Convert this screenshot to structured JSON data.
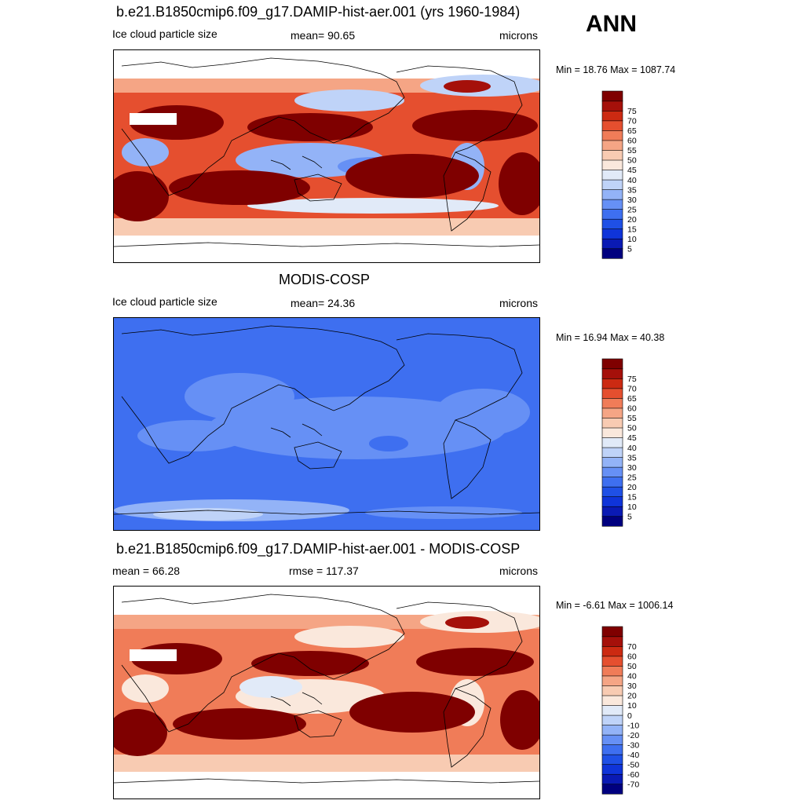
{
  "season": "ANN",
  "units_label": "microns",
  "panels": [
    {
      "id": "test",
      "title": "b.e21.B1850cmip6.f09_g17.DAMIP-hist-aer.001 (yrs 1960-1984)",
      "left_label": "Ice cloud particle size",
      "center_label": "mean=  90.65",
      "minmax": "Min =  18.76 Max = 1087.74"
    },
    {
      "id": "reference",
      "title": "MODIS-COSP",
      "left_label": "Ice cloud particle size",
      "center_label": "mean=  24.36",
      "minmax": "Min =  16.94 Max =  40.38"
    },
    {
      "id": "difference",
      "title": "b.e21.B1850cmip6.f09_g17.DAMIP-hist-aer.001 - MODIS-COSP",
      "left_label": "mean =  66.28",
      "center_label": "rmse = 117.37",
      "minmax": "Min =  -6.61 Max = 1006.14"
    }
  ],
  "chart_data": [
    {
      "type": "heatmap",
      "title": "b.e21.B1850cmip6.f09_g17.DAMIP-hist-aer.001 (yrs 1960-1984)",
      "variable": "Ice cloud particle size",
      "units": "microns",
      "mean": 90.65,
      "min": 18.76,
      "max": 1087.74,
      "colorbar": {
        "levels": [
          5,
          10,
          15,
          20,
          25,
          30,
          35,
          40,
          45,
          50,
          55,
          60,
          65,
          70,
          75
        ],
        "colors": [
          "#00007f",
          "#0a1ab4",
          "#0f34d9",
          "#1f50e6",
          "#3e6ff0",
          "#6690f5",
          "#93b3f7",
          "#bfd3f8",
          "#e1eaf8",
          "#fae8dc",
          "#f8cbb2",
          "#f5a585",
          "#f07c58",
          "#e54f2f",
          "#cc2a12",
          "#a5100a",
          "#7f0000"
        ]
      }
    },
    {
      "type": "heatmap",
      "title": "MODIS-COSP",
      "variable": "Ice cloud particle size",
      "units": "microns",
      "mean": 24.36,
      "min": 16.94,
      "max": 40.38,
      "colorbar": {
        "levels": [
          5,
          10,
          15,
          20,
          25,
          30,
          35,
          40,
          45,
          50,
          55,
          60,
          65,
          70,
          75
        ],
        "colors": [
          "#00007f",
          "#0a1ab4",
          "#0f34d9",
          "#1f50e6",
          "#3e6ff0",
          "#6690f5",
          "#93b3f7",
          "#bfd3f8",
          "#e1eaf8",
          "#fae8dc",
          "#f8cbb2",
          "#f5a585",
          "#f07c58",
          "#e54f2f",
          "#cc2a12",
          "#a5100a",
          "#7f0000"
        ]
      }
    },
    {
      "type": "heatmap",
      "title": "b.e21.B1850cmip6.f09_g17.DAMIP-hist-aer.001 - MODIS-COSP",
      "units": "microns",
      "mean": 66.28,
      "rmse": 117.37,
      "min": -6.61,
      "max": 1006.14,
      "colorbar": {
        "levels": [
          -70,
          -60,
          -50,
          -40,
          -30,
          -20,
          -10,
          0,
          10,
          20,
          30,
          40,
          50,
          60,
          70
        ],
        "colors": [
          "#00007f",
          "#0a1ab4",
          "#0f34d9",
          "#1f50e6",
          "#3e6ff0",
          "#6690f5",
          "#93b3f7",
          "#bfd3f8",
          "#e1eaf8",
          "#fae8dc",
          "#f8cbb2",
          "#f5a585",
          "#f07c58",
          "#e54f2f",
          "#cc2a12",
          "#a5100a",
          "#7f0000"
        ]
      }
    }
  ]
}
